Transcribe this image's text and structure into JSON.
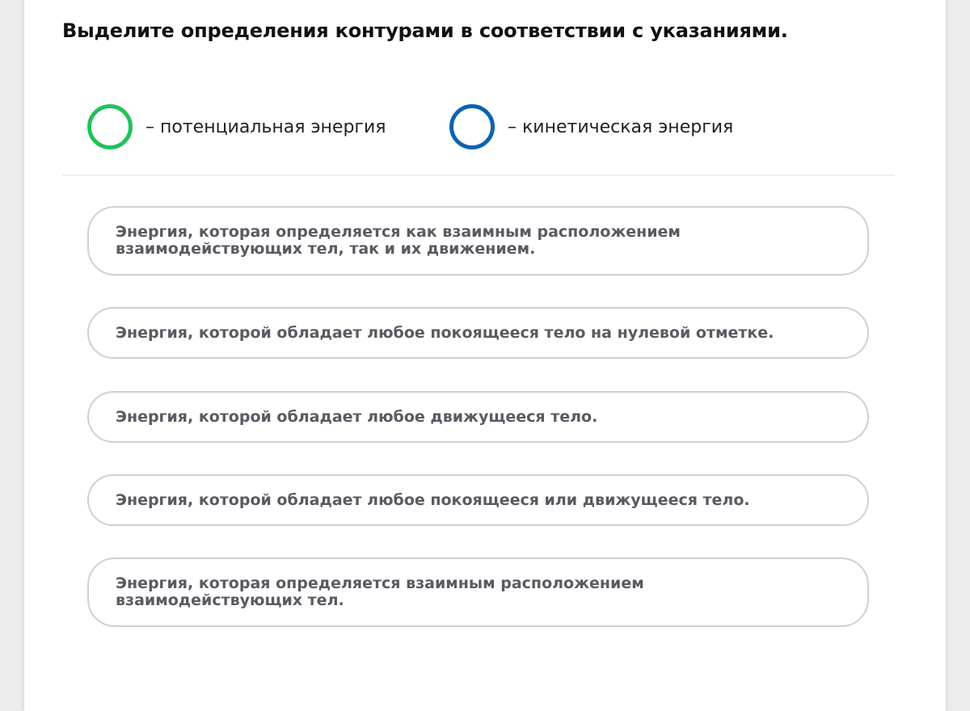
{
  "title": "Выделите определения контурами в соответствии с указаниями.",
  "legend": [
    {
      "label": "– потенциальная энергия",
      "color": "#1fc25a",
      "icon": "green-circle-outline"
    },
    {
      "label": "– кинетическая энергия",
      "color": "#0b63b0",
      "icon": "blue-circle-outline"
    }
  ],
  "options": [
    {
      "text": "Энергия, которая определяется как взаимным расположением взаимодействующих тел, так и их движением."
    },
    {
      "text": "Энергия, которой обладает любое покоящееся тело на нулевой отметке."
    },
    {
      "text": "Энергия, которой обладает любое движущееся тело."
    },
    {
      "text": "Энергия, которой обладает любое покоящееся или движущееся тело."
    },
    {
      "text": "Энергия, которая определяется взаимным расположением взаимодействующих тел."
    }
  ]
}
